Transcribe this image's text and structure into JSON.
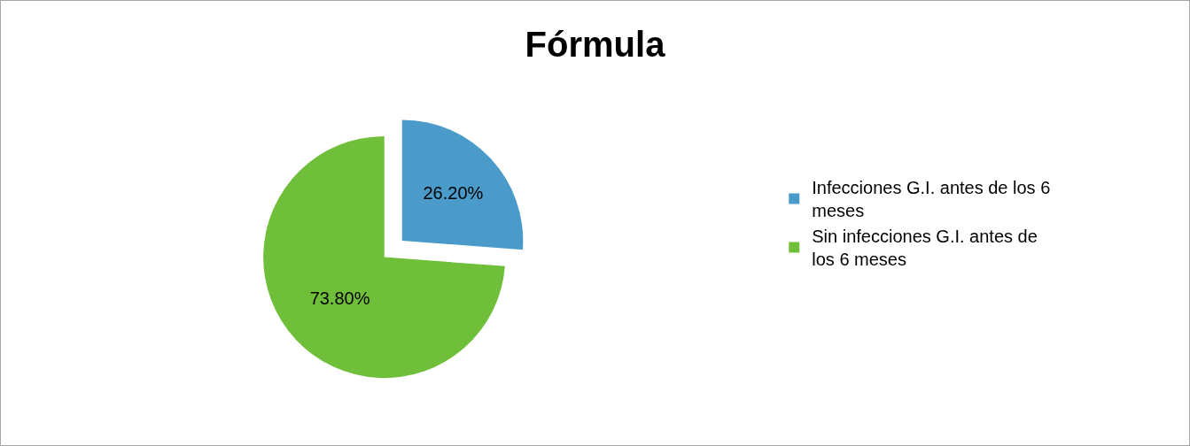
{
  "chart_data": {
    "type": "pie",
    "title": "Fórmula",
    "categories": [
      "Infecciones G.I. antes de los 6 meses",
      "Sin infecciones G.I. antes de los 6 meses"
    ],
    "values": [
      26.2,
      73.8
    ],
    "colors": [
      "#4a9bc9",
      "#70bf3a"
    ],
    "value_labels": [
      "26.20%",
      "73.80%"
    ],
    "legend": "right"
  }
}
